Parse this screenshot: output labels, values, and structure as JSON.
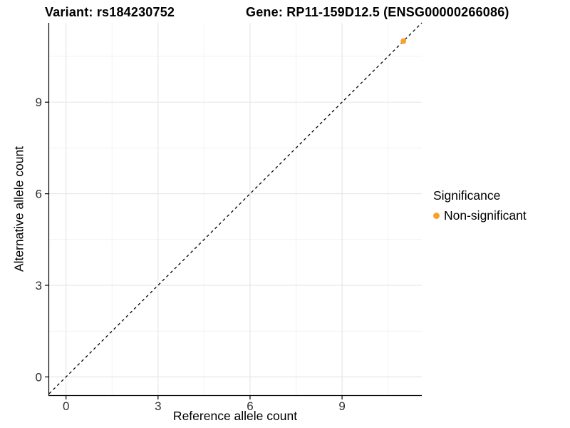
{
  "chart_data": {
    "type": "scatter",
    "title_left": "Variant: rs184230752",
    "title_right": "Gene: RP11-159D12.5 (ENSG00000266086)",
    "xlabel": "Reference allele count",
    "ylabel": "Alternative allele count",
    "xlim": [
      -0.55,
      11.6
    ],
    "ylim": [
      -0.6,
      11.6
    ],
    "x_ticks": [
      0,
      3,
      6,
      9
    ],
    "y_ticks": [
      0,
      3,
      6,
      9
    ],
    "x_minor": [
      1.5,
      4.5,
      7.5,
      10.5
    ],
    "y_minor": [
      1.5,
      4.5,
      7.5,
      10.5
    ],
    "grid": true,
    "identity_line": {
      "style": "dashed",
      "slope": 1,
      "intercept": 0,
      "color": "#000000"
    },
    "series": [
      {
        "name": "Non-significant",
        "color": "#F9A12B",
        "points": [
          {
            "x": 11,
            "y": 11
          }
        ]
      }
    ],
    "legend": {
      "position": "right",
      "title": "Significance",
      "items": [
        {
          "label": "Non-significant",
          "color": "#F9A12B"
        }
      ]
    },
    "colors": {
      "grid_major": "#E5E5E5",
      "grid_minor": "#F1F1F1",
      "axis": "#000000",
      "tick_text": "#303030"
    }
  }
}
